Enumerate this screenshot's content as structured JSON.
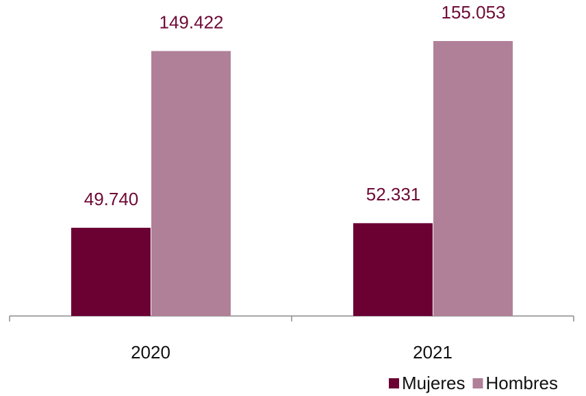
{
  "chart_data": {
    "type": "bar",
    "categories": [
      "2020",
      "2021"
    ],
    "series": [
      {
        "name": "Mujeres",
        "color": "#6b0033",
        "values": [
          49740,
          52331
        ],
        "value_labels": [
          "49.740",
          "52.331"
        ]
      },
      {
        "name": "Hombres",
        "color": "#b08098",
        "values": [
          149422,
          155053
        ],
        "value_labels": [
          "149.422",
          "155.053"
        ]
      }
    ],
    "legend": "bottom-right"
  }
}
